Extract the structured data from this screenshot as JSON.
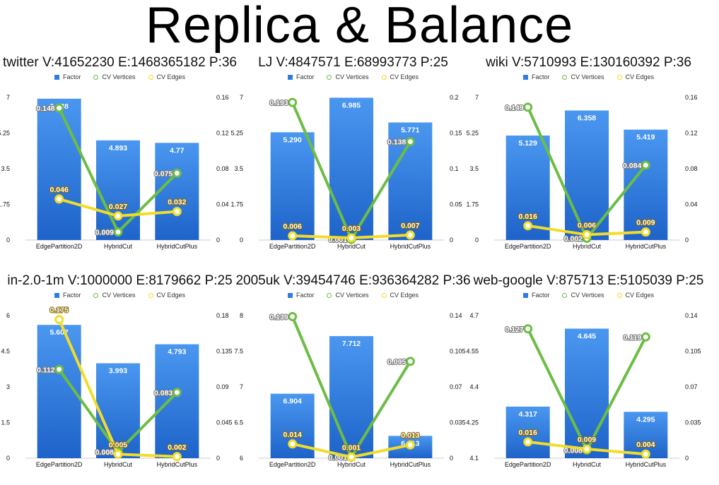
{
  "title": "Replica & Balance",
  "legend": {
    "factor": "Factor",
    "cv_vertices": "CV Vertices",
    "cv_edges": "CV Edges"
  },
  "colors": {
    "factor": "#2f7de0",
    "cv_vertices": "#6cbd45",
    "cv_edges": "#f2dc2a"
  },
  "chart_data": [
    {
      "type": "bar",
      "title": "twitter V:41652230 E:1468365182 P:36",
      "categories": [
        "EdgePartition2D",
        "HybridCut",
        "HybridCutPlus"
      ],
      "left_axis": {
        "ticks": [
          "0",
          "1.75",
          "3.5",
          "5.25",
          "7"
        ],
        "ylim": [
          0,
          7
        ]
      },
      "right_axis": {
        "ticks": [
          "0",
          "0.04",
          "0.08",
          "0.12",
          "0.16"
        ],
        "ylim": [
          0,
          0.16
        ]
      },
      "series": [
        {
          "name": "Factor",
          "type": "bar",
          "axis": "left",
          "values": [
            6.938,
            4.893,
            4.77
          ],
          "labels": [
            "6.938",
            "4.893",
            "4.77"
          ]
        },
        {
          "name": "CV Vertices",
          "type": "line",
          "axis": "right",
          "values": [
            0.148,
            0.009,
            0.075
          ],
          "labels": [
            "0.148",
            "0.009",
            "0.075"
          ]
        },
        {
          "name": "CV Edges",
          "type": "line",
          "axis": "right",
          "values": [
            0.046,
            0.027,
            0.032
          ],
          "labels": [
            "0.046",
            "0.027",
            "0.032"
          ]
        }
      ]
    },
    {
      "type": "bar",
      "title": "LJ V:4847571 E:68993773 P:25",
      "categories": [
        "EdgePartition2D",
        "HybridCut",
        "HybridCutPlus"
      ],
      "left_axis": {
        "ticks": [
          "0",
          "1.75",
          "3.5",
          "5.25",
          "7"
        ],
        "ylim": [
          0,
          7
        ]
      },
      "right_axis": {
        "ticks": [
          "0",
          "0.05",
          "0.1",
          "0.15",
          "0.2"
        ],
        "ylim": [
          0,
          0.2
        ]
      },
      "series": [
        {
          "name": "Factor",
          "type": "bar",
          "axis": "left",
          "values": [
            5.29,
            6.985,
            5.771
          ],
          "labels": [
            "5.290",
            "6.985",
            "5.771"
          ]
        },
        {
          "name": "CV Vertices",
          "type": "line",
          "axis": "right",
          "values": [
            0.193,
            0.001,
            0.138
          ],
          "labels": [
            "0.193",
            "0.001",
            "0.138"
          ]
        },
        {
          "name": "CV Edges",
          "type": "line",
          "axis": "right",
          "values": [
            0.006,
            0.003,
            0.007
          ],
          "labels": [
            "0.006",
            "0.003",
            "0.007"
          ]
        }
      ]
    },
    {
      "type": "bar",
      "title": "wiki V:5710993 E:130160392 P:36",
      "categories": [
        "EdgePartition2D",
        "HybridCut",
        "HybridCutPlus"
      ],
      "left_axis": {
        "ticks": [
          "0",
          "1.75",
          "3.5",
          "5.25",
          "7"
        ],
        "ylim": [
          0,
          7
        ]
      },
      "right_axis": {
        "ticks": [
          "0",
          "0.04",
          "0.08",
          "0.12",
          "0.16"
        ],
        "ylim": [
          0,
          0.16
        ]
      },
      "series": [
        {
          "name": "Factor",
          "type": "bar",
          "axis": "left",
          "values": [
            5.129,
            6.358,
            5.419
          ],
          "labels": [
            "5.129",
            "6.358",
            "5.419"
          ]
        },
        {
          "name": "CV Vertices",
          "type": "line",
          "axis": "right",
          "values": [
            0.149,
            0.002,
            0.084
          ],
          "labels": [
            "0.149",
            "0.002",
            "0.084"
          ]
        },
        {
          "name": "CV Edges",
          "type": "line",
          "axis": "right",
          "values": [
            0.016,
            0.006,
            0.009
          ],
          "labels": [
            "0.016",
            "0.006",
            "0.009"
          ]
        }
      ]
    },
    {
      "type": "bar",
      "title": "in-2.0-1m V:1000000 E:8179662 P:25",
      "categories": [
        "EdgePartition2D",
        "HybridCut",
        "HybridCutPlus"
      ],
      "left_axis": {
        "ticks": [
          "0",
          "1.5",
          "3",
          "4.5",
          "6"
        ],
        "ylim": [
          0,
          6
        ]
      },
      "right_axis": {
        "ticks": [
          "0",
          "0.045",
          "0.09",
          "0.135",
          "0.18"
        ],
        "ylim": [
          0,
          0.18
        ]
      },
      "series": [
        {
          "name": "Factor",
          "type": "bar",
          "axis": "left",
          "values": [
            5.607,
            3.993,
            4.793
          ],
          "labels": [
            "5.607",
            "3.993",
            "4.793"
          ]
        },
        {
          "name": "CV Vertices",
          "type": "line",
          "axis": "right",
          "values": [
            0.112,
            0.008,
            0.083
          ],
          "labels": [
            "0.112",
            "0.008",
            "0.083"
          ]
        },
        {
          "name": "CV Edges",
          "type": "line",
          "axis": "right",
          "values": [
            0.175,
            0.005,
            0.002
          ],
          "labels": [
            "0.175",
            "0.005",
            "0.002"
          ]
        }
      ]
    },
    {
      "type": "bar",
      "title": "2005uk V:39454746 E:936364282 P:36",
      "categories": [
        "EdgePartition2D",
        "HybridCut",
        "HybridCutPlus"
      ],
      "left_axis": {
        "ticks": [
          "6",
          "6.5",
          "7",
          "7.5",
          "8"
        ],
        "ylim": [
          6,
          8
        ]
      },
      "right_axis": {
        "ticks": [
          "0",
          "0.035",
          "0.07",
          "0.105",
          "0.14"
        ],
        "ylim": [
          0,
          0.14
        ]
      },
      "series": [
        {
          "name": "Factor",
          "type": "bar",
          "axis": "left",
          "values": [
            6.904,
            7.712,
            6.313
          ],
          "labels": [
            "6.904",
            "7.712",
            "6.313"
          ]
        },
        {
          "name": "CV Vertices",
          "type": "line",
          "axis": "right",
          "values": [
            0.139,
            0.001,
            0.095
          ],
          "labels": [
            "0.139",
            "0.001",
            "0.095"
          ]
        },
        {
          "name": "CV Edges",
          "type": "line",
          "axis": "right",
          "values": [
            0.014,
            0.001,
            0.013
          ],
          "labels": [
            "0.014",
            "0.001",
            "0.013"
          ]
        }
      ]
    },
    {
      "type": "bar",
      "title": "web-google V:875713 E:5105039 P:25",
      "categories": [
        "EdgePartition2D",
        "HybridCut",
        "HybridCutPlus"
      ],
      "left_axis": {
        "ticks": [
          "4.1",
          "4.25",
          "4.4",
          "4.55",
          "4.7"
        ],
        "ylim": [
          4.1,
          4.7
        ]
      },
      "right_axis": {
        "ticks": [
          "0",
          "0.035",
          "0.07",
          "0.105",
          "0.14"
        ],
        "ylim": [
          0,
          0.14
        ]
      },
      "series": [
        {
          "name": "Factor",
          "type": "bar",
          "axis": "left",
          "values": [
            4.317,
            4.645,
            4.295
          ],
          "labels": [
            "4.317",
            "4.645",
            "4.295"
          ]
        },
        {
          "name": "CV Vertices",
          "type": "line",
          "axis": "right",
          "values": [
            0.127,
            0.008,
            0.119
          ],
          "labels": [
            "0.127",
            "0.008",
            "0.119"
          ]
        },
        {
          "name": "CV Edges",
          "type": "line",
          "axis": "right",
          "values": [
            0.016,
            0.009,
            0.004
          ],
          "labels": [
            "0.016",
            "0.009",
            "0.004"
          ]
        }
      ]
    }
  ]
}
